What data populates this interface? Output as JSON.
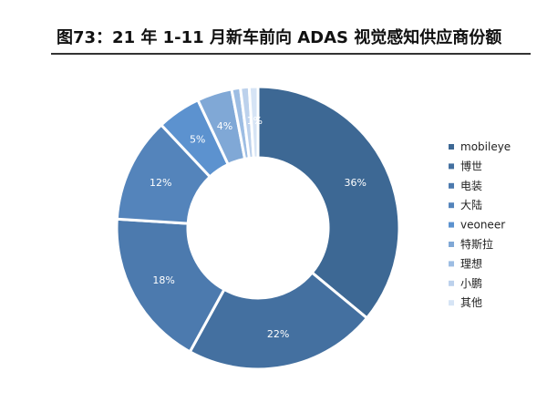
{
  "figure_title": "图73：21 年 1-11 月新车前向 ADAS 视觉感知供应商份额",
  "colors": {
    "mobileye": "#3d6894",
    "博世": "#4470a0",
    "电装": "#4c7aae",
    "大陆": "#5484bb",
    "veoneer": "#5c92cf",
    "特斯拉": "#80a8d6",
    "理想": "#9dbde3",
    "小鹏": "#bcd1ec",
    "其他": "#d6e4f5"
  },
  "chart_data": {
    "type": "pie",
    "style": "donut",
    "labels": [
      "mobileye",
      "博世",
      "电装",
      "大陆",
      "veoneer",
      "特斯拉",
      "理想",
      "小鹏",
      "其他"
    ],
    "values": [
      36,
      22,
      18,
      12,
      5,
      4,
      1,
      1,
      1
    ],
    "data_labels": [
      "36%",
      "22%",
      "18%",
      "12%",
      "5%",
      "4%",
      "",
      "",
      "1%"
    ],
    "legend_position": "right"
  }
}
